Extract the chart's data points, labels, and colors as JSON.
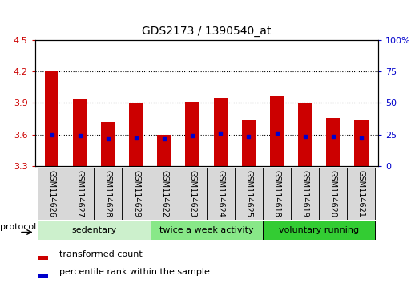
{
  "title": "GDS2173 / 1390540_at",
  "samples": [
    "GSM114626",
    "GSM114627",
    "GSM114628",
    "GSM114629",
    "GSM114622",
    "GSM114623",
    "GSM114624",
    "GSM114625",
    "GSM114618",
    "GSM114619",
    "GSM114620",
    "GSM114621"
  ],
  "transformed_counts": [
    4.2,
    3.93,
    3.72,
    3.9,
    3.6,
    3.91,
    3.95,
    3.74,
    3.96,
    3.9,
    3.76,
    3.74
  ],
  "percentile_ranks": [
    3.6,
    3.59,
    3.56,
    3.57,
    3.56,
    3.59,
    3.61,
    3.58,
    3.61,
    3.58,
    3.58,
    3.57
  ],
  "y_min": 3.3,
  "y_max": 4.5,
  "y_ticks": [
    3.3,
    3.6,
    3.9,
    4.2,
    4.5
  ],
  "y2_ticks": [
    0,
    25,
    50,
    75,
    100
  ],
  "y2_labels": [
    "0",
    "25",
    "50",
    "75",
    "100%"
  ],
  "groups": [
    {
      "label": "sedentary",
      "start": 0,
      "end": 4,
      "color": "#ccf0cc"
    },
    {
      "label": "twice a week activity",
      "start": 4,
      "end": 8,
      "color": "#88e888"
    },
    {
      "label": "voluntary running",
      "start": 8,
      "end": 12,
      "color": "#33cc33"
    }
  ],
  "bar_color": "#cc0000",
  "dot_color": "#0000cc",
  "bar_width": 0.5,
  "tick_color_left": "#cc0000",
  "tick_color_right": "#0000cc",
  "legend_red_label": "transformed count",
  "legend_blue_label": "percentile rank within the sample",
  "protocol_label": "protocol",
  "sample_box_color": "#d8d8d8"
}
